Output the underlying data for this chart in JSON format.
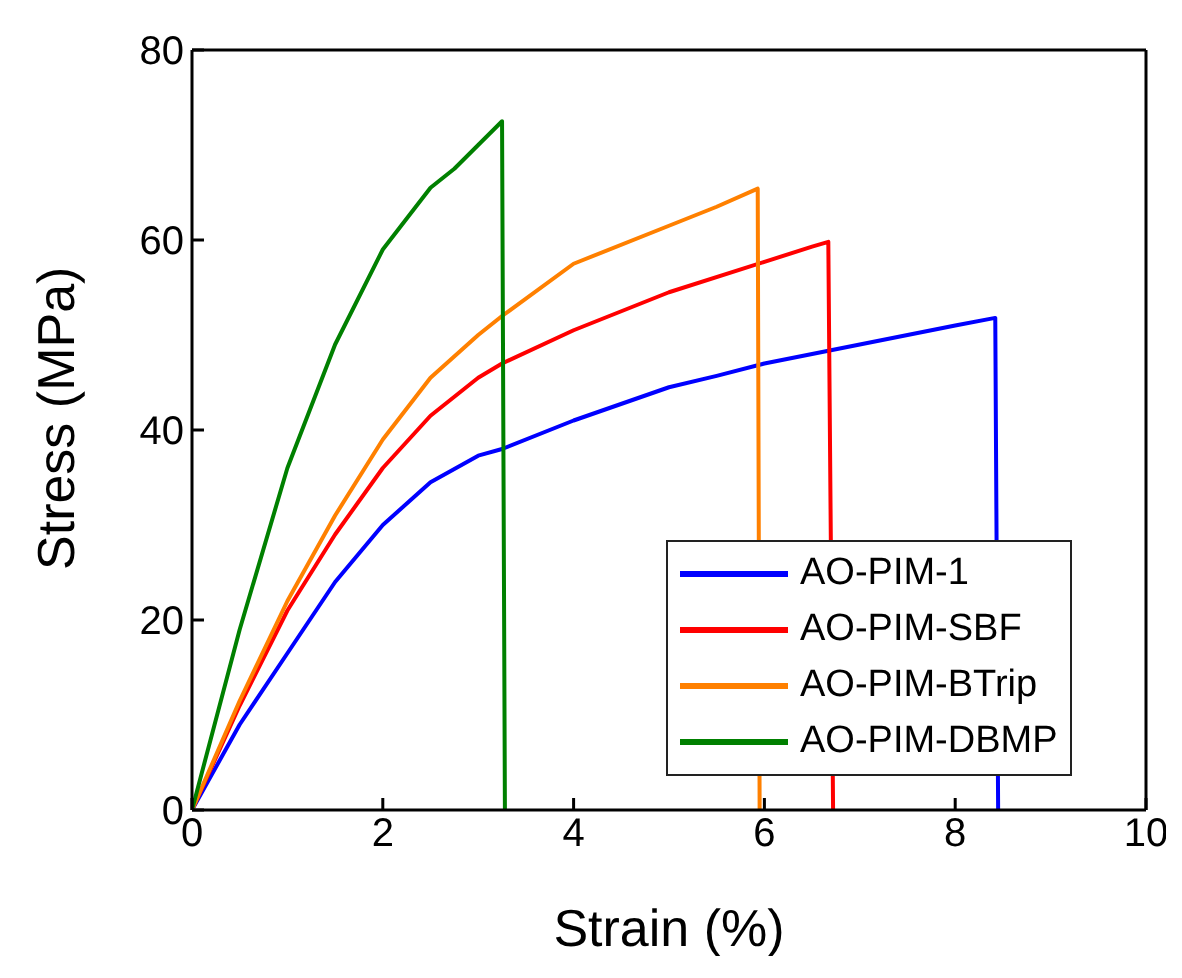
{
  "chart_data": {
    "type": "line",
    "xlabel": "Strain (%)",
    "ylabel": "Stress (MPa)",
    "xlim": [
      0,
      10
    ],
    "ylim": [
      0,
      80
    ],
    "xticks": [
      0,
      2,
      4,
      6,
      8,
      10
    ],
    "yticks": [
      0,
      20,
      40,
      60,
      80
    ],
    "legend": "bottom right",
    "marker": "none",
    "line_style": "solid",
    "series": [
      {
        "name": "AO-PIM-1",
        "color": "#0000ff",
        "x": [
          0,
          0.5,
          1,
          1.5,
          2,
          2.5,
          3,
          3.25,
          4,
          5,
          5.5,
          6,
          7,
          8,
          8.42,
          8.45
        ],
        "values": [
          0,
          9,
          16.5,
          24,
          30,
          34.5,
          37.3,
          38,
          41,
          44.5,
          45.7,
          47,
          49,
          51,
          51.8,
          0
        ]
      },
      {
        "name": "AO-PIM-SBF",
        "color": "#ff0000",
        "x": [
          0,
          0.5,
          1,
          1.5,
          2,
          2.5,
          3,
          3.25,
          4,
          5,
          6,
          6.5,
          6.67,
          6.72
        ],
        "values": [
          0,
          11,
          21,
          29,
          36,
          41.5,
          45.5,
          47,
          50.5,
          54.5,
          57.7,
          59.3,
          59.8,
          0
        ]
      },
      {
        "name": "AO-PIM-BTrip",
        "color": "#ff8000",
        "x": [
          0,
          0.5,
          1,
          1.5,
          2,
          2.5,
          3,
          3.25,
          4,
          5,
          5.5,
          5.93,
          5.95
        ],
        "values": [
          0,
          11.5,
          22,
          31,
          39,
          45.5,
          50,
          52,
          57.5,
          61.5,
          63.5,
          65.4,
          0
        ]
      },
      {
        "name": "AO-PIM-DBMP",
        "color": "#008000",
        "x": [
          0,
          0.5,
          1,
          1.5,
          2,
          2.5,
          2.75,
          3,
          3.25,
          3.28
        ],
        "values": [
          0,
          19,
          36,
          49,
          59,
          65.5,
          67.5,
          70,
          72.5,
          0
        ]
      }
    ]
  }
}
